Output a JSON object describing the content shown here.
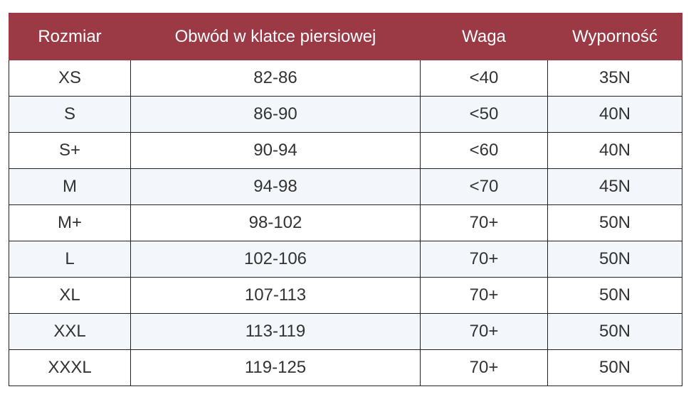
{
  "table": {
    "columns": [
      "Rozmiar",
      "Obwód w klatce piersiowej",
      "Waga",
      "Wyporność"
    ],
    "rows": [
      [
        "XS",
        "82-86",
        "<40",
        "35N"
      ],
      [
        "S",
        "86-90",
        "<50",
        "40N"
      ],
      [
        "S+",
        "90-94",
        "<60",
        "40N"
      ],
      [
        "M",
        "94-98",
        "<70",
        "45N"
      ],
      [
        "M+",
        "98-102",
        "70+",
        "50N"
      ],
      [
        "L",
        "102-106",
        "70+",
        "50N"
      ],
      [
        "XL",
        "107-113",
        "70+",
        "50N"
      ],
      [
        "XXL",
        "113-119",
        "70+",
        "50N"
      ],
      [
        "XXXL",
        "119-125",
        "70+",
        "50N"
      ]
    ]
  }
}
